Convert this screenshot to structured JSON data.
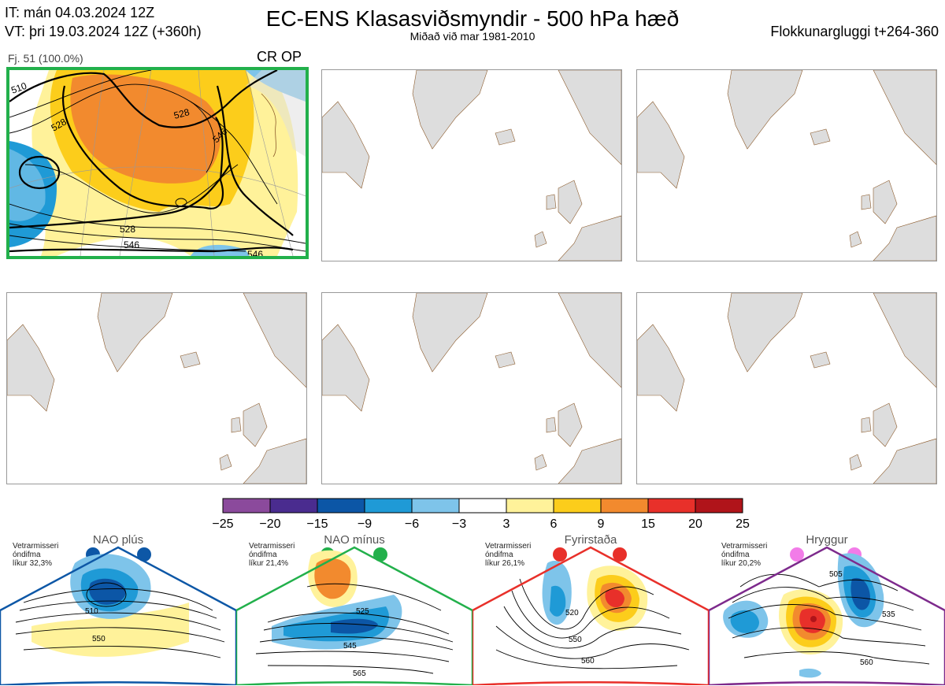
{
  "header": {
    "it_line": "IT: mán 04.03.2024 12Z",
    "vt_line": "VT: þri 19.03.2024 12Z  (+360h)",
    "title": "EC-ENS Klasasviðsmyndir - 500 hPa hæð",
    "subtitle": "Miðað við mar 1981-2010",
    "window": "Flokkunargluggi t+264-360"
  },
  "main_panel": {
    "cluster": "Fj. 51 (100.0%)",
    "regime": "CR OP",
    "border_color": "#22b04b",
    "contour_labels": [
      "510",
      "528",
      "528",
      "546",
      "528",
      "546",
      "546"
    ]
  },
  "colorbar": {
    "ticks": [
      "−25",
      "−20",
      "−15",
      "−9",
      "−6",
      "−3",
      "3",
      "6",
      "9",
      "15",
      "20",
      "25"
    ],
    "colors": [
      "#8b4a9c",
      "#4a2c8f",
      "#0c56a6",
      "#1f9ad6",
      "#7ec4ea",
      "#ffffff",
      "#fff29a",
      "#fccd1b",
      "#f28a2e",
      "#e8302a",
      "#b0141a"
    ]
  },
  "regimes": [
    {
      "name": "NAO plús",
      "season": "Vetrarmisseri",
      "anomaly": "óndifma",
      "probability": "líkur 32,3%",
      "color": "#0d57a6",
      "labels": [
        "510",
        "550"
      ]
    },
    {
      "name": "NAO mínus",
      "season": "Vetrarmisseri",
      "anomaly": "óndifma",
      "probability": "líkur 21,4%",
      "color": "#22b04b",
      "labels": [
        "525",
        "545",
        "565"
      ]
    },
    {
      "name": "Fyrirstaða",
      "season": "Vetrarmisseri",
      "anomaly": "óndifma",
      "probability": "líkur 26,1%",
      "color": "#e8302a",
      "labels": [
        "520",
        "550",
        "560"
      ]
    },
    {
      "name": "Hryggur",
      "season": "Vetrarmisseri",
      "anomaly": "óndifma",
      "probability": "líkur 20,2%",
      "color": "#f27ce8",
      "border": "#7d2a8c",
      "labels": [
        "505",
        "535",
        "560"
      ]
    }
  ]
}
